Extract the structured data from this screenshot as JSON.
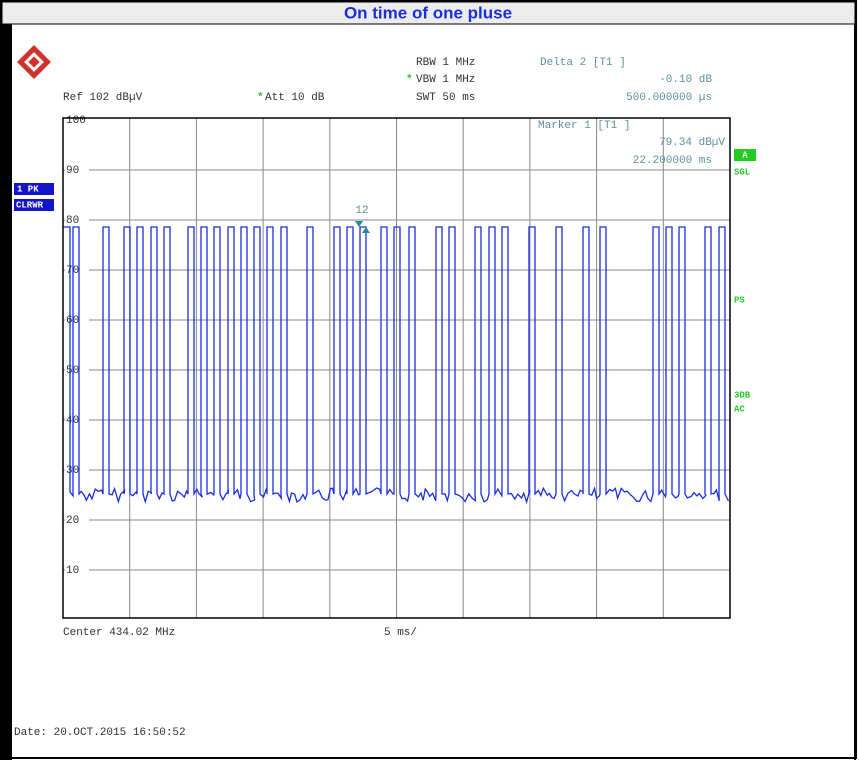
{
  "header": {
    "title": "On time of one pluse"
  },
  "settings": {
    "ref": "Ref  102 dBµV",
    "asterisk": "*",
    "att": "Att  10 dB",
    "rbw": "RBW 1 MHz",
    "vbw": "VBW 1 MHz",
    "swt": "SWT 50 ms"
  },
  "delta": {
    "label": "Delta 2 [T1 ]",
    "level": "-0.10 dB",
    "time": "500.000000 µs"
  },
  "marker": {
    "label": "Marker 1 [T1 ]",
    "level": "79.34 dBµV",
    "time": "22.200000 ms",
    "tag": "12"
  },
  "trace": {
    "detector": "1 PK",
    "mode": "CLRWR"
  },
  "side": {
    "a": "A",
    "sgl": "SGL",
    "ps": "PS",
    "db": "3DB",
    "ac": "AC"
  },
  "grid_labels": [
    "100",
    "90",
    "80",
    "70",
    "60",
    "50",
    "40",
    "30",
    "20",
    "10"
  ],
  "footer": {
    "center": "Center 434.02 MHz",
    "span": "5 ms/",
    "date": "Date: 20.OCT.2015  16:50:52"
  }
}
